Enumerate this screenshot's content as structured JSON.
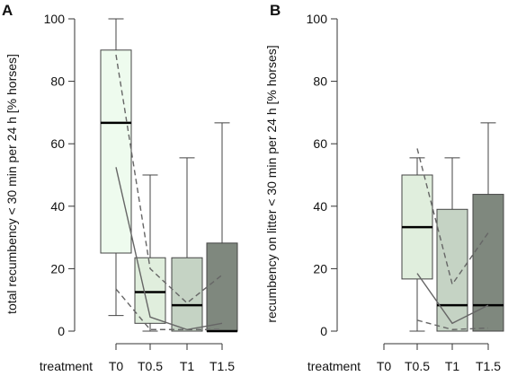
{
  "chart_data": [
    {
      "type": "box",
      "panel_label": "A",
      "ylabel": "total recumbency < 30 min per 24 h [% horses]",
      "xlabel": "treatment",
      "ylim": [
        0,
        100
      ],
      "yticks": [
        0,
        20,
        40,
        60,
        80,
        100
      ],
      "categories": [
        "T0",
        "T0.5",
        "T1",
        "T1.5"
      ],
      "boxes": [
        {
          "category": "T0",
          "whisker_low": 5,
          "q1": 25,
          "median": 66.7,
          "q3": 90,
          "whisker_high": 100,
          "color": "#eefbee"
        },
        {
          "category": "T0.5",
          "whisker_low": 0,
          "q1": 2.5,
          "median": 12.5,
          "q3": 23.5,
          "whisker_high": 50,
          "color": "#e0eedd"
        },
        {
          "category": "T1",
          "whisker_low": 0,
          "q1": 0,
          "median": 8.3,
          "q3": 23.5,
          "whisker_high": 55.5,
          "color": "#c5d3c4"
        },
        {
          "category": "T1.5",
          "whisker_low": 0,
          "q1": 0,
          "median": 0,
          "q3": 28.2,
          "whisker_high": 66.7,
          "color": "#7f887e"
        }
      ],
      "lines": [
        {
          "style": "solid",
          "values": [
            52.5,
            4.5,
            0.5,
            2.5
          ]
        },
        {
          "style": "dashed",
          "values": [
            88.5,
            20,
            9,
            18
          ]
        },
        {
          "style": "dashed",
          "values": [
            13.5,
            0.5,
            0.5,
            0.5
          ]
        }
      ]
    },
    {
      "type": "box",
      "panel_label": "B",
      "ylabel": "recumbency on litter < 30 min per 24 h [% horses]",
      "xlabel": "treatment",
      "ylim": [
        0,
        100
      ],
      "yticks": [
        0,
        20,
        40,
        60,
        80,
        100
      ],
      "categories": [
        "T0",
        "T0.5",
        "T1",
        "T1.5"
      ],
      "boxes": [
        {
          "category": "T0.5",
          "whisker_low": 0,
          "q1": 16.7,
          "median": 33.3,
          "q3": 50,
          "whisker_high": 55.5,
          "color": "#e0eedd"
        },
        {
          "category": "T1",
          "whisker_low": 0,
          "q1": 0,
          "median": 8.3,
          "q3": 39,
          "whisker_high": 55.5,
          "color": "#c5d3c4"
        },
        {
          "category": "T1.5",
          "whisker_low": 0,
          "q1": 0,
          "median": 8.3,
          "q3": 43.8,
          "whisker_high": 66.7,
          "color": "#7f887e"
        }
      ],
      "lines": [
        {
          "style": "solid",
          "values": [
            null,
            18.5,
            2.5,
            8.3
          ]
        },
        {
          "style": "dashed",
          "values": [
            null,
            58.5,
            15,
            31.5
          ]
        },
        {
          "style": "dashed",
          "values": [
            null,
            3.5,
            0.5,
            1
          ]
        }
      ]
    }
  ]
}
